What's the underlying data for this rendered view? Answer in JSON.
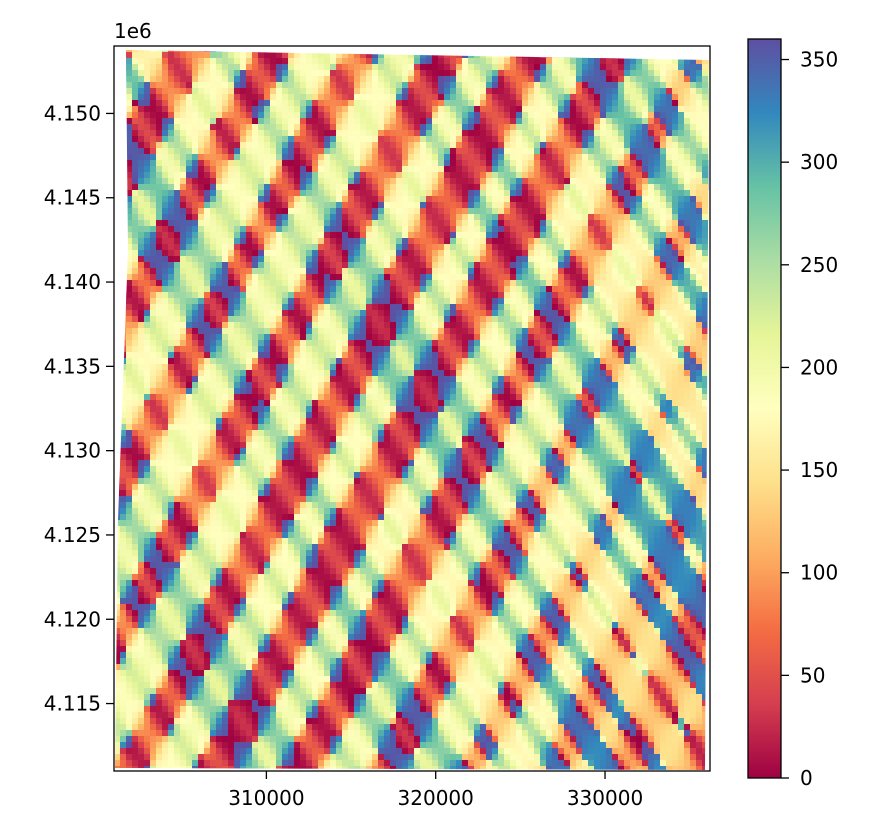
{
  "chart_data": {
    "type": "heatmap",
    "title": "",
    "xlabel": "",
    "ylabel": "",
    "y_offset_label": "1e6",
    "xlim": [
      301000,
      336200
    ],
    "ylim": [
      4.111,
      4.154
    ],
    "x_ticks": [
      {
        "value": 310000,
        "label": "310000"
      },
      {
        "value": 320000,
        "label": "320000"
      },
      {
        "value": 330000,
        "label": "330000"
      }
    ],
    "y_ticks": [
      {
        "value": 4.115,
        "label": "4.115"
      },
      {
        "value": 4.12,
        "label": "4.120"
      },
      {
        "value": 4.125,
        "label": "4.125"
      },
      {
        "value": 4.13,
        "label": "4.130"
      },
      {
        "value": 4.135,
        "label": "4.135"
      },
      {
        "value": 4.14,
        "label": "4.140"
      },
      {
        "value": 4.145,
        "label": "4.145"
      },
      {
        "value": 4.15,
        "label": "4.150"
      }
    ],
    "colorbar": {
      "colormap": "Spectral",
      "min": 0,
      "max": 360,
      "ticks": [
        {
          "value": 0,
          "label": "0"
        },
        {
          "value": 50,
          "label": "50"
        },
        {
          "value": 100,
          "label": "100"
        },
        {
          "value": 150,
          "label": "150"
        },
        {
          "value": 200,
          "label": "200"
        },
        {
          "value": 250,
          "label": "250"
        },
        {
          "value": 300,
          "label": "300"
        },
        {
          "value": 350,
          "label": "350"
        }
      ],
      "stops": [
        "#9e0142",
        "#d53e4f",
        "#f46d43",
        "#fdae61",
        "#fee08b",
        "#ffffbf",
        "#e6f598",
        "#abdda4",
        "#66c2a5",
        "#3288bd",
        "#5e4fa2"
      ]
    },
    "grid": false,
    "legend": "none"
  }
}
